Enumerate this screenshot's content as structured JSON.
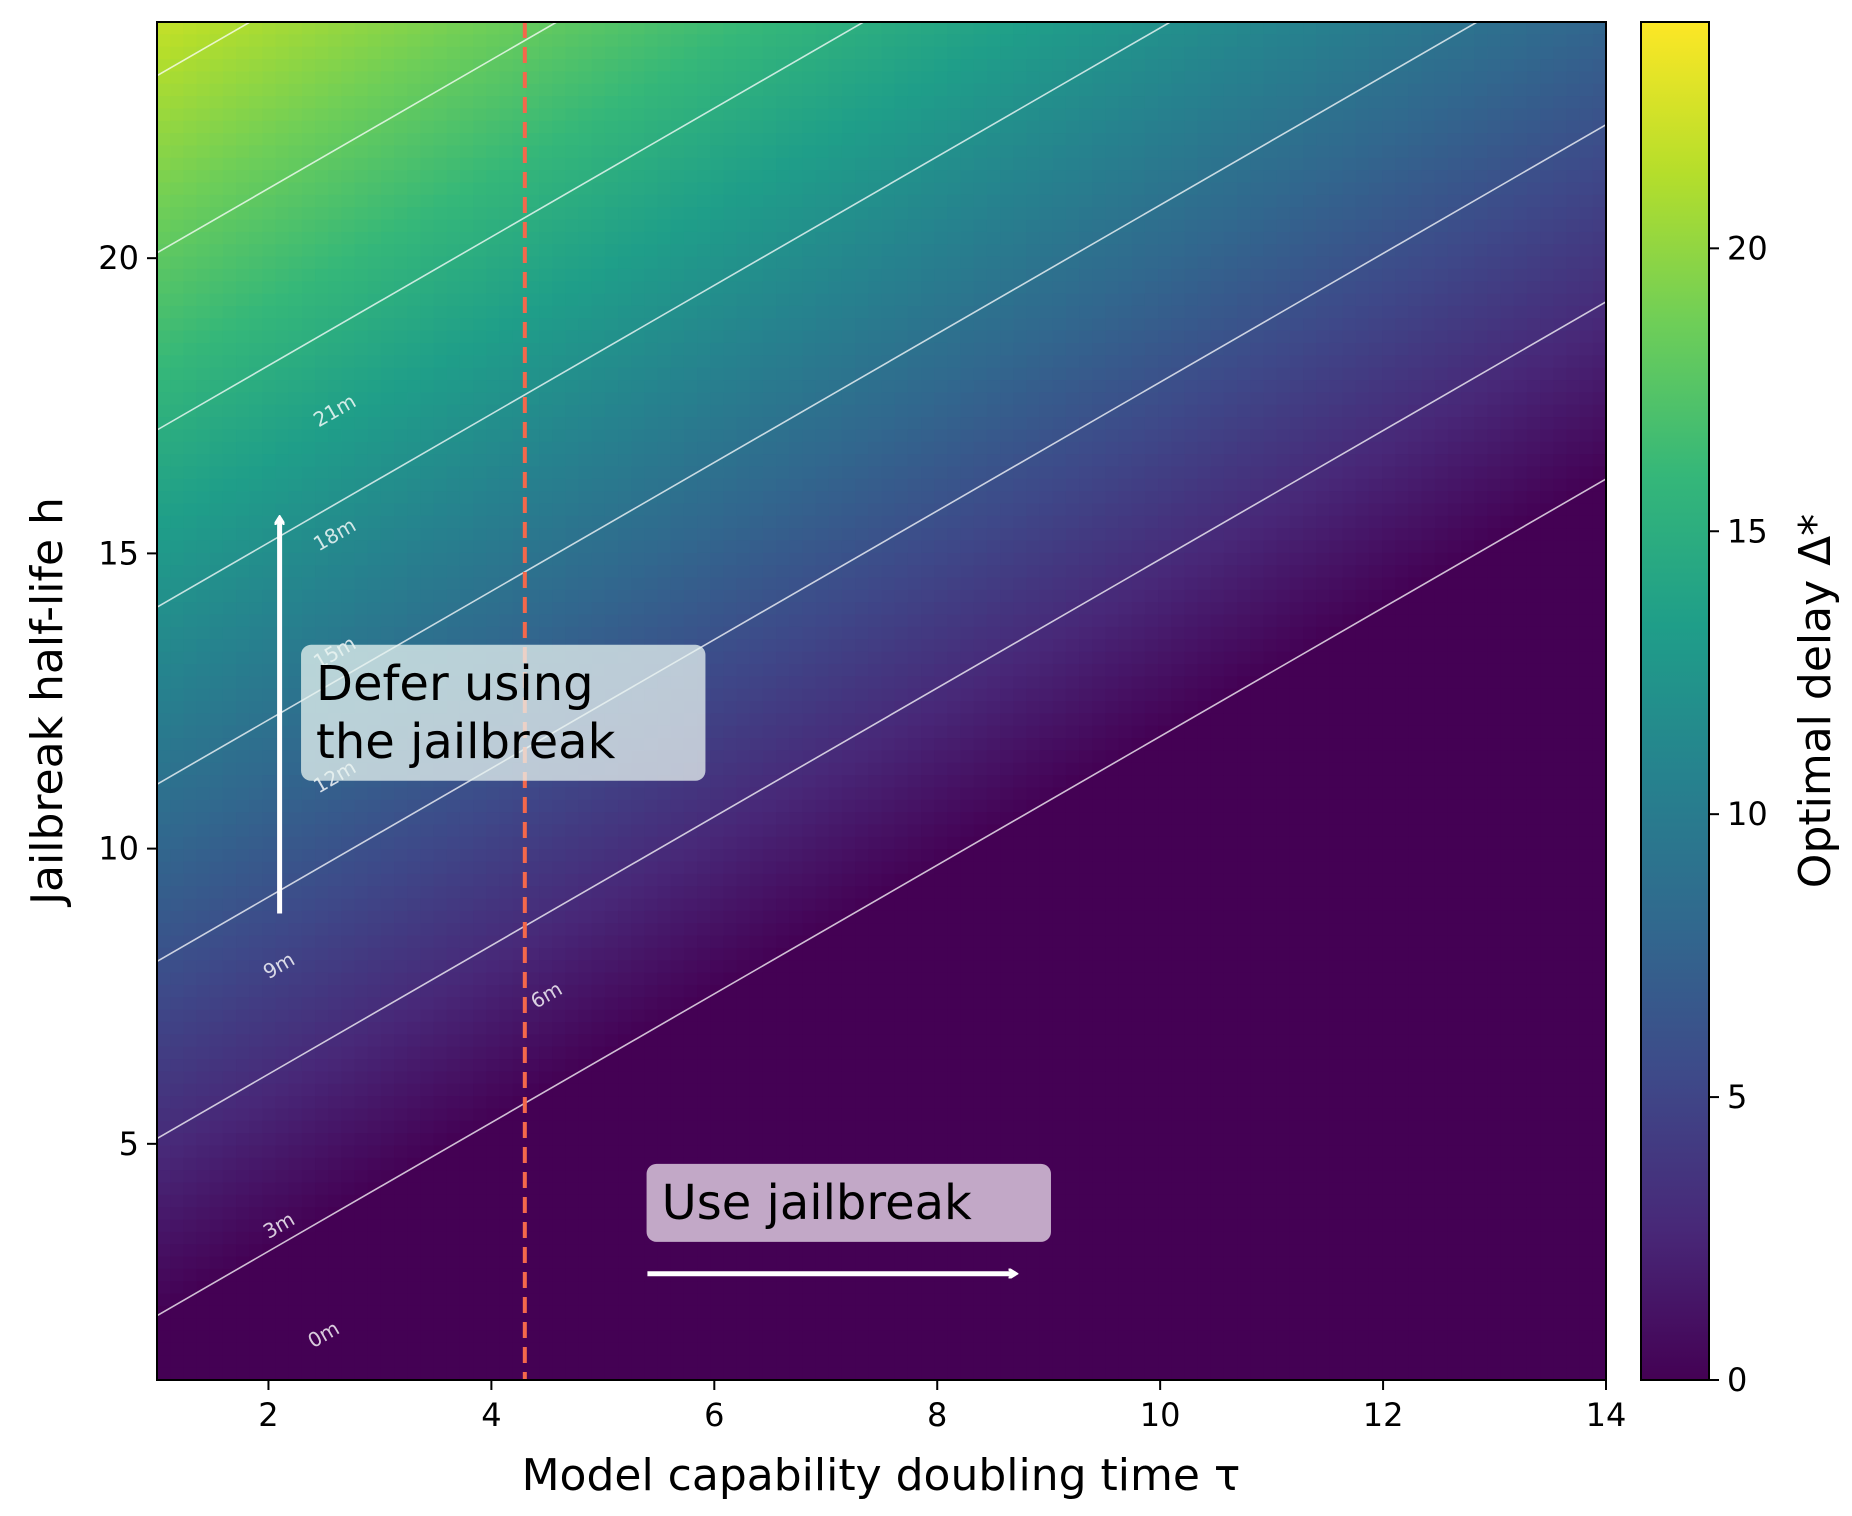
{
  "chart_data": {
    "type": "heatmap",
    "title": "",
    "xlabel": "Model capability doubling time τ",
    "ylabel": "Jailbreak half-life h",
    "colorbar_label": "Optimal delay Δ*",
    "xlim": [
      1,
      14
    ],
    "ylim": [
      1,
      24
    ],
    "x_ticks": [
      2,
      4,
      6,
      8,
      10,
      12,
      14
    ],
    "y_ticks": [
      5,
      10,
      15,
      20
    ],
    "colorbar_range": [
      0,
      24
    ],
    "colorbar_ticks": [
      0,
      5,
      10,
      15,
      20
    ],
    "colormap": "viridis",
    "colormap_stops": [
      "#440154",
      "#482878",
      "#3e4989",
      "#31688e",
      "#26828e",
      "#1f9e89",
      "#35b779",
      "#6ece58",
      "#b5de2b",
      "#fde725"
    ],
    "field_model": "delay = clip(h - 1 - 1.09 * tau, 0, 24)",
    "contours": [
      {
        "level": 0,
        "label": "0m",
        "label_at": [
          2.5,
          1.75
        ]
      },
      {
        "level": 3,
        "label": "3m",
        "label_at": [
          2.1,
          3.6
        ]
      },
      {
        "level": 6,
        "label": "6m",
        "label_at": [
          4.5,
          7.5
        ]
      },
      {
        "level": 9,
        "label": "9m",
        "label_at": [
          2.1,
          8.0
        ]
      },
      {
        "level": 12,
        "label": "12m",
        "label_at": [
          2.6,
          11.2
        ]
      },
      {
        "level": 15,
        "label": "15m",
        "label_at": [
          2.6,
          13.3
        ]
      },
      {
        "level": 18,
        "label": "18m",
        "label_at": [
          2.6,
          15.3
        ]
      },
      {
        "level": 21,
        "label": "21m",
        "label_at": [
          2.6,
          17.4
        ]
      }
    ],
    "reference_line": {
      "x": 4.3,
      "color": "#f4684b",
      "style": "dashed"
    },
    "annotations": [
      {
        "text_lines": [
          "Defer using",
          "the jailbreak"
        ],
        "at": [
          2.4,
          12.3
        ],
        "box_color": "#e8f4f0",
        "arrow": {
          "from": [
            2.1,
            8.9
          ],
          "to": [
            2.1,
            15.6
          ]
        }
      },
      {
        "text_lines": [
          "Use jailbreak"
        ],
        "at": [
          5.5,
          4.0
        ],
        "box_color": "#ece0ee",
        "arrow": {
          "from": [
            5.4,
            2.8
          ],
          "to": [
            8.7,
            2.8
          ]
        }
      }
    ]
  }
}
